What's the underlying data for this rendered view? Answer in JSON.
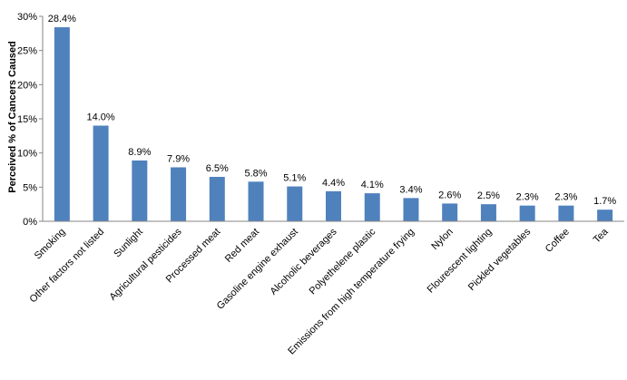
{
  "chart_data": {
    "type": "bar",
    "title": "",
    "xlabel": "",
    "ylabel": "Perceived % of Cancers Caused",
    "ylim": [
      0,
      30
    ],
    "yticks": [
      "0%",
      "5%",
      "10%",
      "15%",
      "20%",
      "25%",
      "30%"
    ],
    "grid": false,
    "legend": "none",
    "bar_color": "#4F81BD",
    "categories": [
      "Smoking",
      "Other factors not listed",
      "Sunlight",
      "Agricultural pesticides",
      "Processed meat",
      "Red meat",
      "Gasoline engine exhaust",
      "Alcoholic beverages",
      "Polyethelene plastic",
      "Emissions from high temperature frying",
      "Nylon",
      "Flourescent lighting",
      "Pickled vegetables",
      "Coffee",
      "Tea"
    ],
    "values": [
      28.4,
      14.0,
      8.9,
      7.9,
      6.5,
      5.8,
      5.1,
      4.4,
      4.1,
      3.4,
      2.6,
      2.5,
      2.3,
      2.3,
      1.7
    ],
    "data_labels": [
      "28.4%",
      "14.0%",
      "8.9%",
      "7.9%",
      "6.5%",
      "5.8%",
      "5.1%",
      "4.4%",
      "4.1%",
      "3.4%",
      "2.6%",
      "2.5%",
      "2.3%",
      "2.3%",
      "1.7%"
    ]
  }
}
